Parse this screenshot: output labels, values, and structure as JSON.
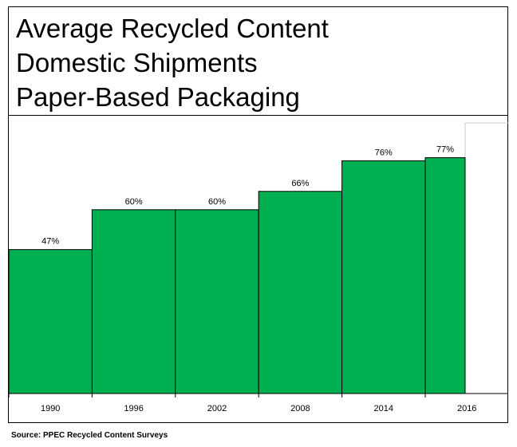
{
  "title_lines": [
    "Average Recycled Content",
    "Domestic Shipments",
    "Paper-Based Packaging"
  ],
  "source": "Source: PPEC Recycled Content Surveys",
  "colors": {
    "bar_fill": "#00b050",
    "bar_stroke": "#000000"
  },
  "chart_data": {
    "type": "bar",
    "title": "Average Recycled Content Domestic Shipments Paper-Based Packaging",
    "categories": [
      "1990",
      "1996",
      "2002",
      "2008",
      "2014",
      "2016"
    ],
    "values": [
      47,
      60,
      60,
      66,
      76,
      77
    ],
    "data_labels": [
      "47%",
      "60%",
      "60%",
      "66%",
      "76%",
      "77%"
    ],
    "xlabel": "",
    "ylabel": "",
    "ylim": [
      0,
      92
    ],
    "grid": false,
    "legend": "none"
  }
}
